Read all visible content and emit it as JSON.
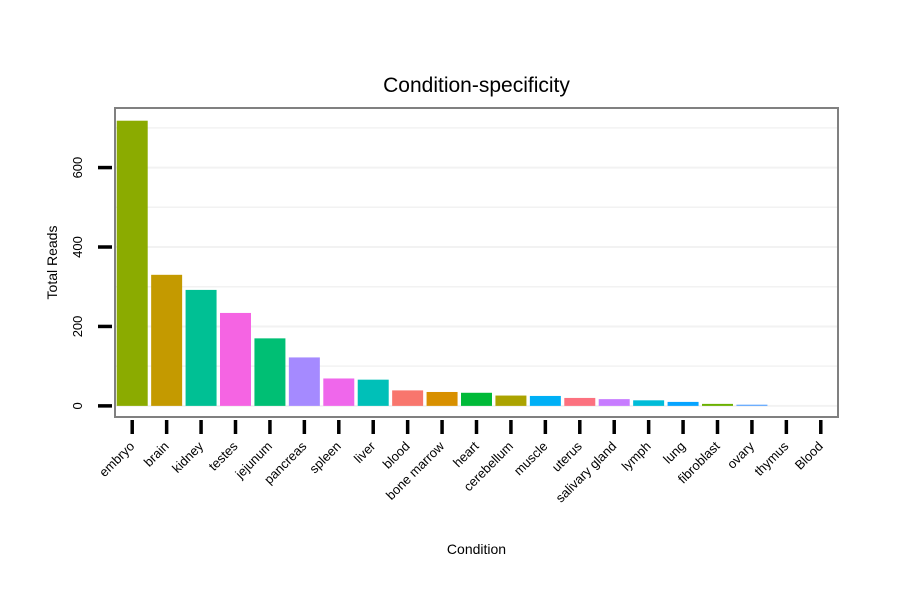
{
  "chart_data": {
    "type": "bar",
    "title": "Condition-specificity",
    "xlabel": "Condition",
    "ylabel": "Total Reads",
    "ylim": [
      -28,
      750
    ],
    "yticks": [
      0,
      200,
      400,
      600
    ],
    "grid": true,
    "categories": [
      "embryo",
      "brain",
      "kidney",
      "testes",
      "jejunum",
      "pancreas",
      "spleen",
      "liver",
      "blood",
      "bone marrow",
      "heart",
      "cerebellum",
      "muscle",
      "uterus",
      "salivary gland",
      "lymph",
      "lung",
      "fibroblast",
      "ovary",
      "thymus",
      "Blood"
    ],
    "values": [
      718,
      330,
      292,
      234,
      170,
      122,
      69,
      66,
      39,
      35,
      33,
      26,
      25,
      20,
      17,
      14,
      10,
      5,
      3,
      0,
      0
    ],
    "colors": [
      "#8bab00",
      "#c49a00",
      "#00c094",
      "#f564e3",
      "#00bf74",
      "#a58aff",
      "#ef67eb",
      "#00c0b8",
      "#f8766d",
      "#d89000",
      "#00ba38",
      "#aba300",
      "#00b0f6",
      "#fc717f",
      "#c77cff",
      "#00bcd8",
      "#06a4ff",
      "#6bb100",
      "#5ba5ff",
      "#b983ff",
      "#fe6e8a"
    ]
  }
}
